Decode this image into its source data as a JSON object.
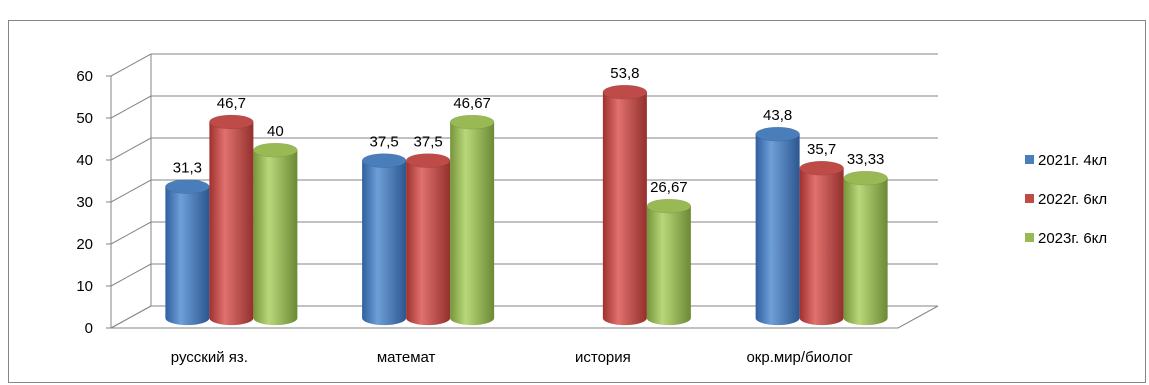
{
  "chart_data": {
    "type": "bar",
    "categories": [
      "русский яз.",
      "математ",
      "история",
      "окр.мир/биолог"
    ],
    "series": [
      {
        "name": "2021г. 4кл",
        "color": "#4a7ebb",
        "values": [
          31.3,
          37.5,
          null,
          43.8
        ],
        "labels": [
          "31,3",
          "37,5",
          "",
          "43,8"
        ]
      },
      {
        "name": "2022г. 6кл",
        "color": "#be4b48",
        "values": [
          46.7,
          37.5,
          53.8,
          35.7
        ],
        "labels": [
          "46,7",
          "37,5",
          "53,8",
          "35,7"
        ]
      },
      {
        "name": "2023г. 6кл",
        "color": "#98b954",
        "values": [
          40,
          46.67,
          26.67,
          33.33
        ],
        "labels": [
          "40",
          "46,67",
          "26,67",
          "33,33"
        ]
      }
    ],
    "yticks": [
      "0",
      "10",
      "20",
      "30",
      "40",
      "50",
      "60"
    ],
    "ylim": [
      0,
      60
    ],
    "grid": true,
    "legend_position": "right",
    "title": "",
    "xlabel": "",
    "ylabel": ""
  }
}
